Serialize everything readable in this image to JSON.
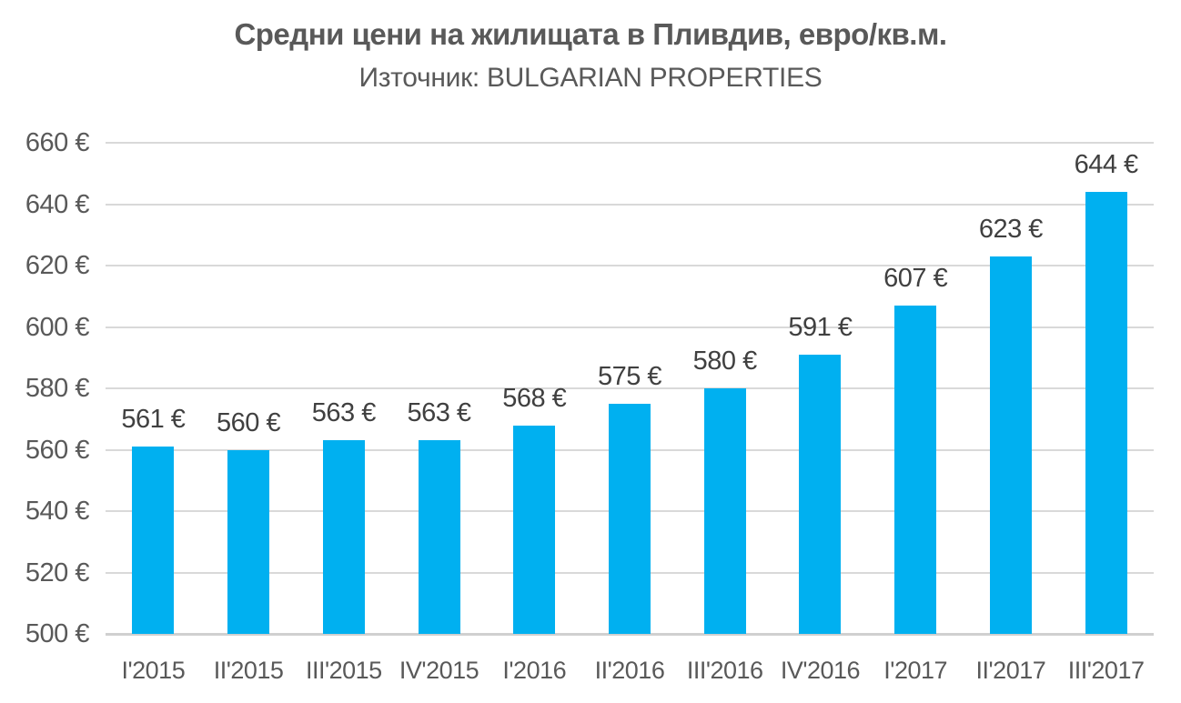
{
  "chart_data": {
    "type": "bar",
    "title": "Средни цени на жилищата в Пливдив, евро/кв.м.",
    "subtitle": "Източник: BULGARIAN PROPERTIES",
    "categories": [
      "I'2015",
      "II'2015",
      "III'2015",
      "IV'2015",
      "I'2016",
      "II'2016",
      "III'2016",
      "IV'2016",
      "I'2017",
      "II'2017",
      "III'2017"
    ],
    "values": [
      561,
      560,
      563,
      563,
      568,
      575,
      580,
      591,
      607,
      623,
      644
    ],
    "value_labels": [
      "561 €",
      "560 €",
      "563 €",
      "563 €",
      "568 €",
      "575 €",
      "580 €",
      "591 €",
      "607 €",
      "623 €",
      "644 €"
    ],
    "ytick_labels": [
      "500 €",
      "520 €",
      "540 €",
      "560 €",
      "580 €",
      "600 €",
      "620 €",
      "640 €",
      "660 €"
    ],
    "ytick_values": [
      500,
      520,
      540,
      560,
      580,
      600,
      620,
      640,
      660
    ],
    "xlabel": "",
    "ylabel": "",
    "ylim": [
      500,
      660
    ],
    "ytick_step": 20,
    "grid": "horizontal",
    "legend": "none",
    "colors": {
      "bar": "#00B0F0",
      "gridline": "#D9D9D9",
      "axis_line": "#D0D0D0",
      "title_text": "#595959",
      "subtitle_text": "#595959",
      "axis_text": "#595959",
      "data_label_text": "#404040"
    }
  }
}
